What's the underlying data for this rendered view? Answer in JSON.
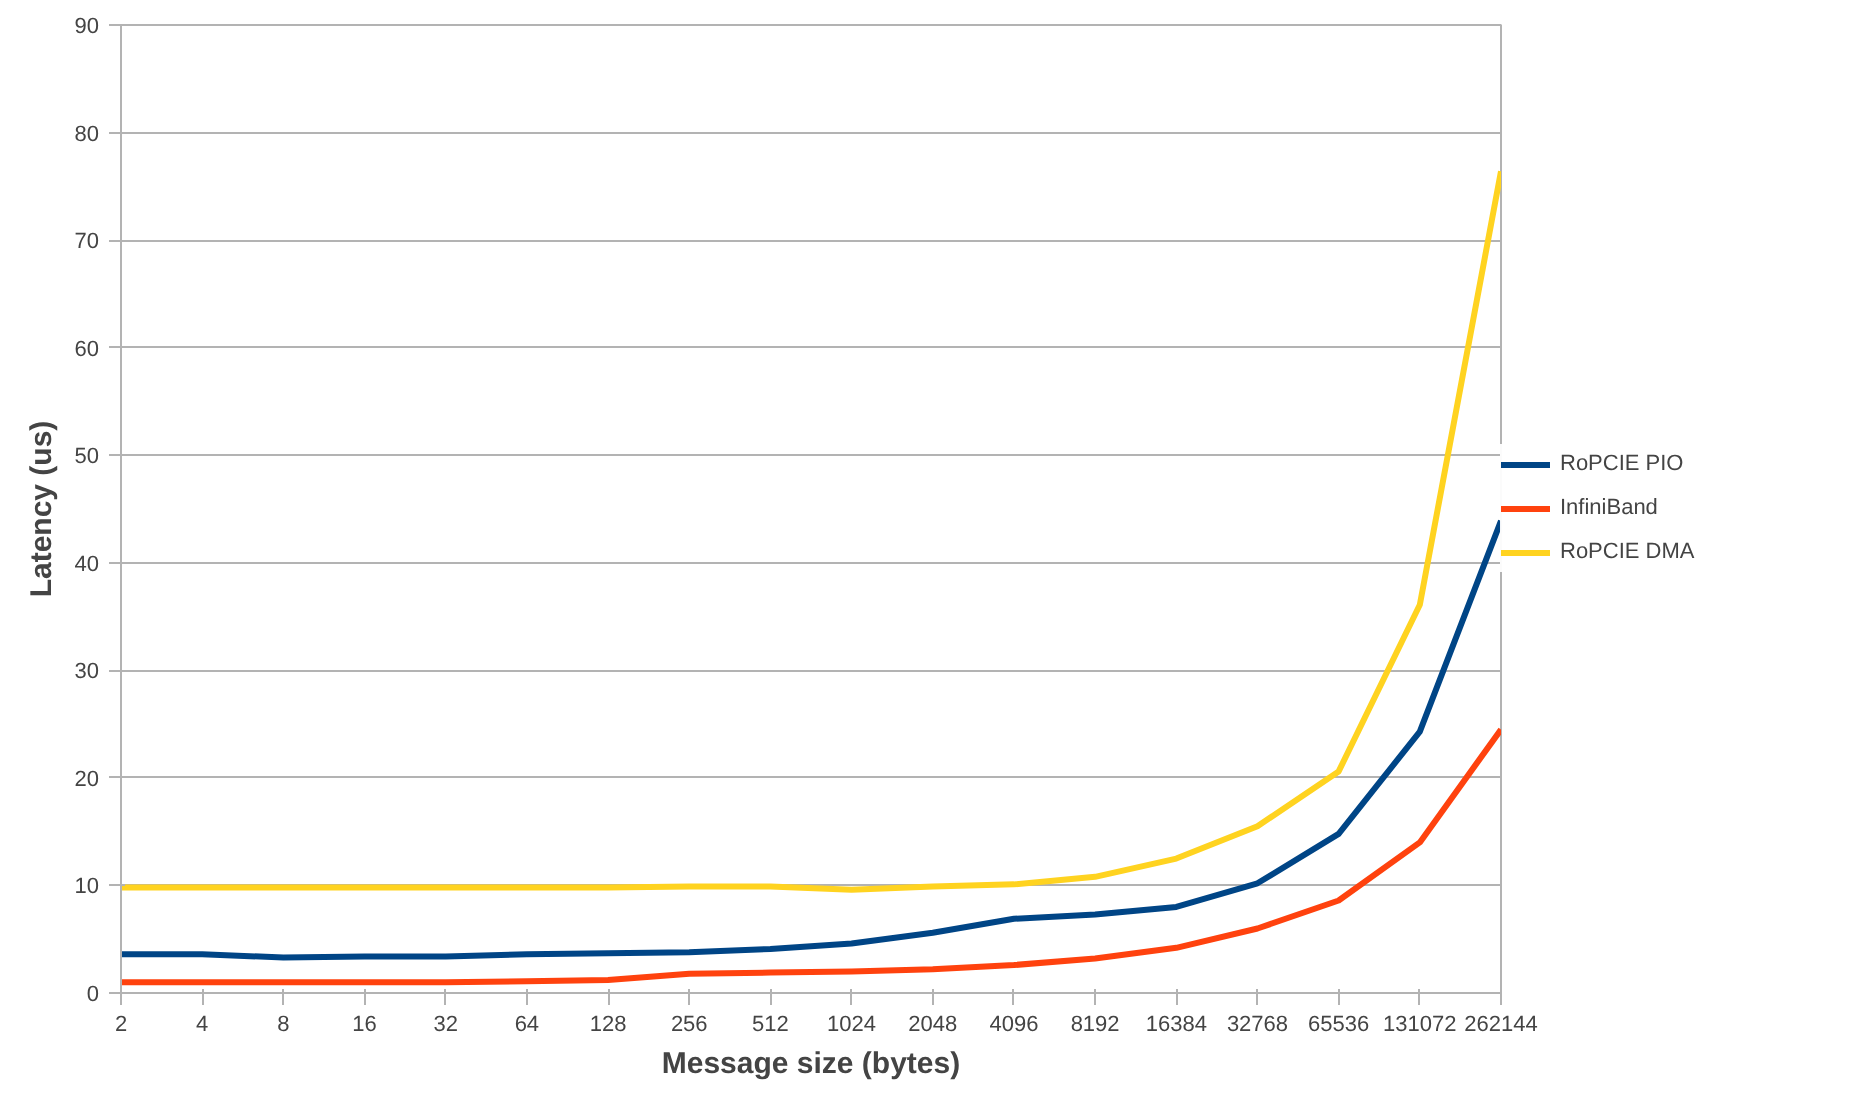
{
  "chart_data": {
    "type": "line",
    "xlabel": "Message size (bytes)",
    "ylabel": "Latency (us)",
    "categories": [
      "2",
      "4",
      "8",
      "16",
      "32",
      "64",
      "128",
      "256",
      "512",
      "1024",
      "2048",
      "4096",
      "8192",
      "16384",
      "32768",
      "65536",
      "131072",
      "262144"
    ],
    "series": [
      {
        "name": "RoPCIE PIO",
        "color": "#004586",
        "values": [
          3.6,
          3.6,
          3.3,
          3.4,
          3.4,
          3.6,
          3.7,
          3.8,
          4.1,
          4.6,
          5.6,
          6.9,
          7.3,
          8.0,
          10.2,
          14.8,
          24.3,
          43.9
        ]
      },
      {
        "name": "InfiniBand",
        "color": "#ff420e",
        "values": [
          1.0,
          1.0,
          1.0,
          1.0,
          1.0,
          1.1,
          1.2,
          1.8,
          1.9,
          2.0,
          2.2,
          2.6,
          3.2,
          4.2,
          6.0,
          8.6,
          14.0,
          24.5
        ]
      },
      {
        "name": "RoPCIE DMA",
        "color": "#ffd320",
        "values": [
          9.8,
          9.8,
          9.8,
          9.8,
          9.8,
          9.8,
          9.8,
          9.9,
          9.9,
          9.6,
          9.9,
          10.1,
          10.8,
          12.5,
          15.5,
          20.6,
          36.1,
          76.4
        ]
      }
    ],
    "ylim": [
      0,
      90
    ],
    "yticks": [
      0,
      10,
      20,
      30,
      40,
      50,
      60,
      70,
      80,
      90
    ],
    "grid": "y",
    "legend": "right",
    "marker": "none",
    "line_style": "solid"
  }
}
